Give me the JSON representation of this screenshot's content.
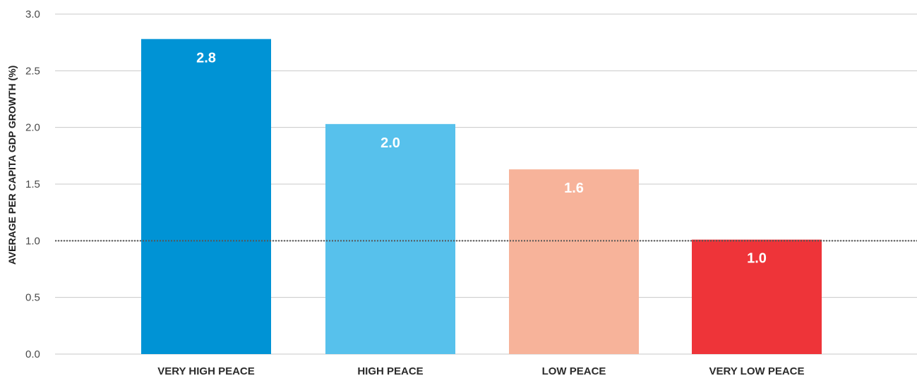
{
  "chart_data": {
    "type": "bar",
    "title": "",
    "xlabel": "",
    "ylabel": "AVERAGE PER CAPITA GDP GROWTH (%)",
    "ylim": [
      0,
      3.0
    ],
    "yticks": [
      "0.0",
      "0.5",
      "1.0",
      "1.5",
      "2.0",
      "2.5",
      "3.0"
    ],
    "categories": [
      "VERY HIGH PEACE",
      "HIGH PEACE",
      "LOW PEACE",
      "VERY LOW PEACE"
    ],
    "values": [
      2.78,
      2.03,
      1.63,
      1.01
    ],
    "value_labels": [
      "2.8",
      "2.0",
      "1.6",
      "1.0"
    ],
    "colors": [
      "#0093d5",
      "#57c1ec",
      "#f7b39a",
      "#ee3439"
    ],
    "reference_line": {
      "value": 1.0,
      "style": "dotted",
      "color": "#555555"
    },
    "grid": true,
    "legend": "none"
  }
}
